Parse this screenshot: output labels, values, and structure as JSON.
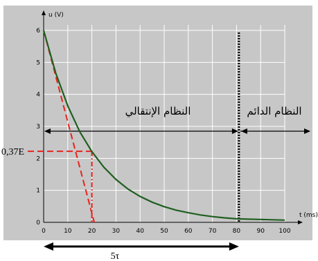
{
  "chart_data": {
    "type": "line",
    "ylabel": "u (V)",
    "xlabel": "t (ms)",
    "xlim": [
      0,
      100
    ],
    "ylim": [
      0,
      6
    ],
    "x_ticks": [
      0,
      10,
      20,
      30,
      40,
      50,
      60,
      70,
      80,
      90,
      100
    ],
    "y_ticks": [
      0,
      1,
      2,
      3,
      4,
      5,
      6
    ],
    "grid": true,
    "series": [
      {
        "color": "#1f5f1f",
        "x": [
          0,
          5,
          10,
          15,
          20,
          25,
          30,
          35,
          40,
          45,
          50,
          55,
          60,
          65,
          70,
          75,
          80,
          85,
          90,
          95,
          100
        ],
        "y": [
          6.0,
          4.67,
          3.64,
          2.83,
          2.21,
          1.72,
          1.34,
          1.04,
          0.81,
          0.63,
          0.49,
          0.38,
          0.3,
          0.23,
          0.18,
          0.14,
          0.11,
          0.1,
          0.09,
          0.08,
          0.07
        ]
      }
    ],
    "annotations": {
      "tangent": {
        "color": "#e8221c",
        "from": [
          0,
          6
        ],
        "to": [
          21,
          0
        ]
      },
      "level_label": "0,37E",
      "level_value": 2.22,
      "tau_x": 20,
      "steady_marker_x": 81,
      "transient_label": "النظام الإنتقالي",
      "steady_label": "النظام الدائم",
      "five_tau_label": "5τ"
    },
    "colors": {
      "plot_background": "#c7c7c7",
      "grid": "#ffffff",
      "curve": "#1f5f1f",
      "annotation_red": "#e8221c"
    }
  }
}
